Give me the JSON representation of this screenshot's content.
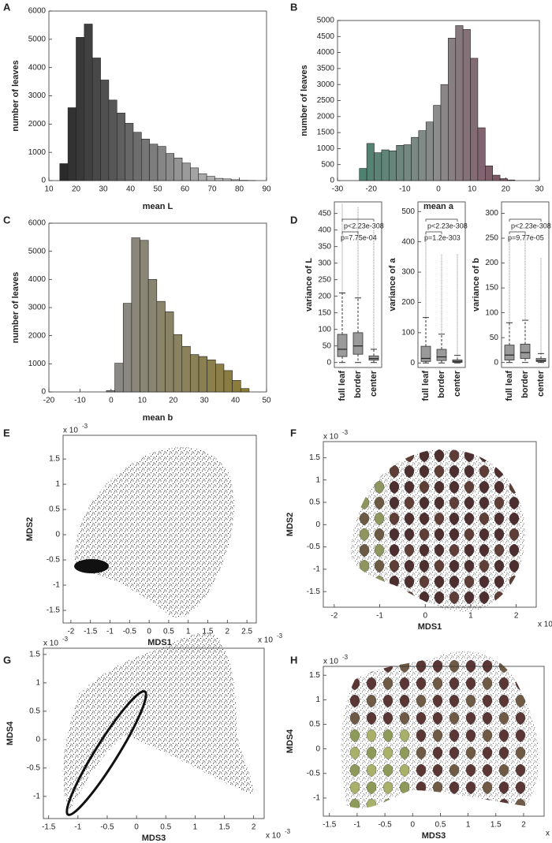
{
  "chart_data": [
    {
      "type": "histogram",
      "panel": "A",
      "xlabel": "mean L",
      "ylabel": "number of leaves",
      "bins": [
        14,
        17,
        20,
        23,
        26,
        29,
        32,
        35,
        38,
        41,
        44,
        47,
        50,
        53,
        56,
        59,
        62,
        65,
        68,
        71,
        74,
        77,
        80,
        83,
        86
      ],
      "values": [
        600,
        2580,
        5070,
        5540,
        4340,
        3560,
        2850,
        2390,
        2030,
        1710,
        1470,
        1290,
        1210,
        960,
        800,
        620,
        450,
        240,
        150,
        80,
        60,
        30,
        10,
        5
      ],
      "colors": [
        "#2a2a2a",
        "#d8d8d8"
      ],
      "xlim": [
        10,
        90
      ],
      "xticks": [
        10,
        20,
        30,
        40,
        50,
        60,
        70,
        80,
        90
      ],
      "ylim": [
        0,
        6000
      ],
      "yticks": [
        0,
        1000,
        2000,
        3000,
        4000,
        5000,
        6000
      ]
    },
    {
      "type": "histogram",
      "panel": "B",
      "xlabel": "mean a",
      "ylabel": "number of leaves",
      "bins": [
        -23.5,
        -21.3,
        -19.1,
        -16.9,
        -14.7,
        -12.5,
        -10.3,
        -8.1,
        -5.9,
        -3.7,
        -1.5,
        0.7,
        2.9,
        5.1,
        7.3,
        9.5,
        11.7,
        13.9,
        16.1,
        18.3,
        20.5,
        22.7
      ],
      "values": [
        380,
        1160,
        870,
        960,
        930,
        1100,
        1120,
        1350,
        1560,
        1830,
        2350,
        3000,
        4450,
        4840,
        4720,
        3820,
        1650,
        460,
        170,
        60,
        20
      ],
      "colors": [
        "#4f8270",
        "#8c8c8c",
        "#7a4a5c"
      ],
      "xlim": [
        -30,
        30
      ],
      "xticks": [
        -30,
        -20,
        -10,
        0,
        10,
        20,
        30
      ],
      "ylim": [
        0,
        5000
      ],
      "yticks": [
        0,
        500,
        1000,
        1500,
        2000,
        2500,
        3000,
        3500,
        4000,
        4500,
        5000
      ]
    },
    {
      "type": "histogram",
      "panel": "C",
      "xlabel": "mean b",
      "ylabel": "number of leaves",
      "bins": [
        -1.5,
        1.2,
        3.9,
        6.6,
        9.3,
        12,
        14.7,
        17.4,
        20.1,
        22.8,
        25.5,
        28.2,
        30.9,
        33.6,
        36.3,
        39,
        41.7,
        44.4
      ],
      "values": [
        50,
        1020,
        3150,
        5480,
        5390,
        4000,
        3220,
        2850,
        2040,
        1620,
        1330,
        1260,
        1140,
        990,
        760,
        410,
        120
      ],
      "colors": [
        "#8a8a8a",
        "#8b7b36"
      ],
      "xlim": [
        -20,
        50
      ],
      "xticks": [
        -20,
        -10,
        0,
        10,
        20,
        30,
        40,
        50
      ],
      "ylim": [
        0,
        6000
      ],
      "yticks": [
        0,
        1000,
        2000,
        3000,
        4000,
        5000,
        6000
      ]
    },
    {
      "type": "box",
      "panel": "D",
      "ylabel": "variance of L",
      "categories": [
        "full leaf",
        "border",
        "center"
      ],
      "boxes": [
        {
          "whisker_low": 0,
          "q1": 18,
          "median": 40,
          "q3": 85,
          "whisker_high": 210,
          "outlier_max": 480
        },
        {
          "whisker_low": 0,
          "q1": 25,
          "median": 50,
          "q3": 90,
          "whisker_high": 195,
          "outlier_max": 470
        },
        {
          "whisker_low": 0,
          "q1": 7,
          "median": 12,
          "q3": 20,
          "whisker_high": 40,
          "outlier_max": 400
        }
      ],
      "annotations": [
        "p<2.23e-308",
        "p=7.75e-04"
      ],
      "ylim": [
        -15,
        485
      ],
      "yticks": [
        0,
        50,
        100,
        150,
        200,
        250,
        300,
        350,
        400,
        450
      ]
    },
    {
      "type": "box",
      "ylabel": "variance of a",
      "categories": [
        "full leaf",
        "border",
        "center"
      ],
      "boxes": [
        {
          "whisker_low": 0,
          "q1": 5,
          "median": 15,
          "q3": 55,
          "whisker_high": 150,
          "outlier_max": 430
        },
        {
          "whisker_low": 0,
          "q1": 8,
          "median": 20,
          "q3": 45,
          "whisker_high": 95,
          "outlier_max": 360
        },
        {
          "whisker_low": 0,
          "q1": 2,
          "median": 5,
          "q3": 10,
          "whisker_high": 25,
          "outlier_max": 360
        }
      ],
      "annotations": [
        "p<2.23e-308",
        "p=1.2e-303"
      ],
      "ylim": [
        -15,
        532
      ],
      "yticks": [
        0,
        100,
        200,
        300,
        400,
        500
      ]
    },
    {
      "type": "box",
      "ylabel": "variance of b",
      "categories": [
        "full leaf",
        "border",
        "center"
      ],
      "boxes": [
        {
          "whisker_low": 0,
          "q1": 5,
          "median": 15,
          "q3": 35,
          "whisker_high": 80,
          "outlier_max": 250
        },
        {
          "whisker_low": 0,
          "q1": 8,
          "median": 20,
          "q3": 37,
          "whisker_high": 85,
          "outlier_max": 260
        },
        {
          "whisker_low": 0,
          "q1": 2,
          "median": 4,
          "q3": 8,
          "whisker_high": 18,
          "outlier_max": 210
        }
      ],
      "annotations": [
        "p<2.23e-308",
        "p=9.77e-05"
      ],
      "ylim": [
        -10,
        323
      ],
      "yticks": [
        0,
        50,
        100,
        150,
        200,
        250,
        300
      ]
    },
    {
      "type": "scatter",
      "panel": "E",
      "xlabel": "MDS1",
      "ylabel": "MDS2",
      "scale_label": "x 10",
      "scale_exp": "-3",
      "xlim": [
        -2.2,
        2.74
      ],
      "xticks": [
        -2,
        -1.5,
        -1,
        -0.5,
        0,
        0.5,
        1,
        1.5,
        2,
        2.5
      ],
      "ylim": [
        -1.75,
        1.97
      ],
      "yticks": [
        -1.5,
        -1,
        -0.5,
        0,
        0.5,
        1,
        1.5
      ]
    },
    {
      "type": "scatter",
      "panel": "F",
      "xlabel": "MDS1",
      "ylabel": "MDS2",
      "scale_label": "x 10",
      "scale_exp": "-3",
      "xlim": [
        -2.24,
        2.44
      ],
      "xticks": [
        -2,
        -1,
        0,
        1,
        2
      ],
      "ylim": [
        -1.85,
        1.86
      ],
      "yticks": [
        -1.5,
        -1,
        -0.5,
        0,
        0.5,
        1,
        1.5
      ]
    },
    {
      "type": "scatter",
      "panel": "G",
      "xlabel": "MDS3",
      "ylabel": "MDS4",
      "scale_label": "x 10",
      "scale_exp": "-3",
      "xlim": [
        -1.59,
        2.18
      ],
      "xticks": [
        -1.5,
        -1,
        -0.5,
        0,
        0.5,
        1,
        1.5,
        2
      ],
      "ylim": [
        -1.39,
        1.61
      ],
      "yticks": [
        -1,
        -0.5,
        0,
        0.5,
        1,
        1.5
      ]
    },
    {
      "type": "scatter",
      "panel": "H",
      "xlabel": "MDS3",
      "ylabel": "MDS4",
      "scale_label": "x 10",
      "scale_exp": "-3",
      "xlim": [
        -1.61,
        2.37
      ],
      "xticks": [
        -1.5,
        -1,
        -0.5,
        0,
        0.5,
        1,
        1.5,
        2
      ],
      "ylim": [
        -1.37,
        1.68
      ],
      "yticks": [
        -1,
        -0.5,
        0,
        0.5,
        1,
        1.5
      ]
    }
  ]
}
